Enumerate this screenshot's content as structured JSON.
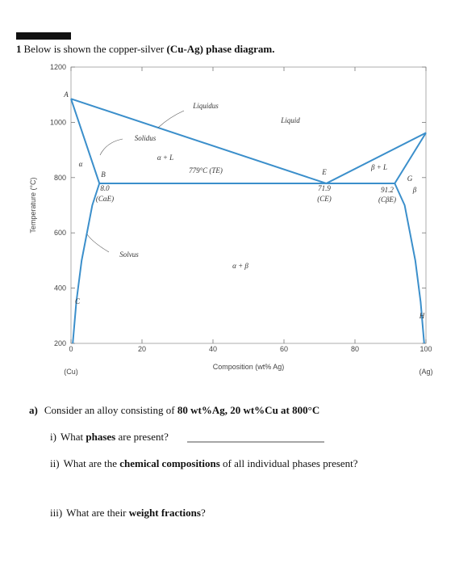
{
  "problem": {
    "number": "1",
    "intro": "Below is shown the copper-silver ",
    "intro_bold": "(Cu-Ag) phase diagram."
  },
  "chart_data": {
    "type": "line",
    "ylabel": "Temperature (°C)",
    "xlabel": "Composition (wt% Ag)",
    "x_end_labels": [
      "(Cu)",
      "(Ag)"
    ],
    "xlim": [
      0,
      100
    ],
    "xticks": [
      0,
      20,
      40,
      60,
      80,
      100
    ],
    "ylim": [
      200,
      1200
    ],
    "yticks": [
      200,
      400,
      600,
      800,
      1000,
      1200
    ],
    "series": [
      {
        "color": "#3b8fcb",
        "x": [
          0,
          71.9,
          100
        ],
        "values": [
          1085,
          779,
          962
        ]
      },
      {
        "color": "#3b8fcb",
        "x": [
          0,
          8.0
        ],
        "values": [
          1085,
          779
        ]
      },
      {
        "color": "#3b8fcb",
        "x": [
          91.2,
          100
        ],
        "values": [
          779,
          962
        ]
      },
      {
        "color": "#3b8fcb",
        "x": [
          8.0,
          6,
          3,
          1.5,
          0.5
        ],
        "values": [
          779,
          700,
          500,
          350,
          200
        ]
      },
      {
        "color": "#3b8fcb",
        "x": [
          91.2,
          94,
          97,
          98.5,
          99.5
        ],
        "values": [
          779,
          700,
          500,
          350,
          200
        ]
      },
      {
        "color": "#3b8fcb",
        "x": [
          8.0,
          91.2
        ],
        "values": [
          779,
          779
        ]
      }
    ],
    "annotations": [
      "A",
      "Liquidus",
      "Liquid",
      "Solidus",
      "α + L",
      "α",
      "779°C (TE)",
      "E",
      "β + L",
      "G",
      "B",
      "8.0",
      "(CαE)",
      "71.9",
      "(CE)",
      "91.2",
      "(CβE)",
      "β",
      "Solvus",
      "α + β",
      "C",
      "H"
    ]
  },
  "part_a": {
    "label": "a)",
    "text": "Consider an alloy consisting of ",
    "bold": "80 wt%Ag, 20 wt%Cu at 800°C"
  },
  "questions": [
    {
      "label": "i)",
      "parts": [
        "What ",
        "phases",
        " are present?"
      ]
    },
    {
      "label": "ii)",
      "parts": [
        "What are the ",
        "chemical compositions",
        " of all individual phases present?"
      ]
    },
    {
      "label": "iii)",
      "parts": [
        "What are their ",
        "weight fractions",
        "?"
      ]
    }
  ]
}
